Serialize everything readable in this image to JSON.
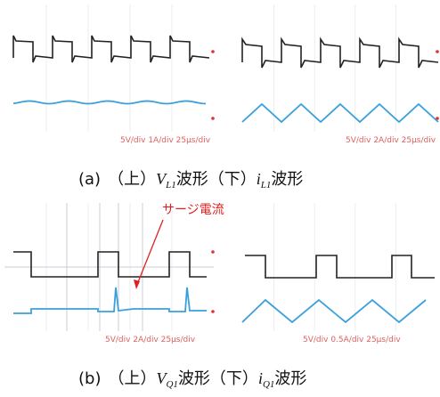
{
  "panel_a": {
    "left_scale": "5V/div 1A/div 25μs/div",
    "right_scale": "5V/div 2A/div 25μs/div",
    "caption": {
      "label": "(a)",
      "upper": "（上）",
      "v": "V",
      "v_sub": "L1",
      "mid": "波形（下）",
      "i": "i",
      "i_sub": "L1",
      "end": "波形"
    }
  },
  "panel_b": {
    "annotation": "サージ電流",
    "left_scale": "5V/div 2A/div 25μs/div",
    "right_scale": "5V/div 0.5A/div 25μs/div",
    "caption": {
      "label": "(b)",
      "upper": "（上）",
      "v": "V",
      "v_sub": "Q1",
      "mid": "波形（下）",
      "i": "i",
      "i_sub": "Q1",
      "end": "波形"
    }
  }
}
